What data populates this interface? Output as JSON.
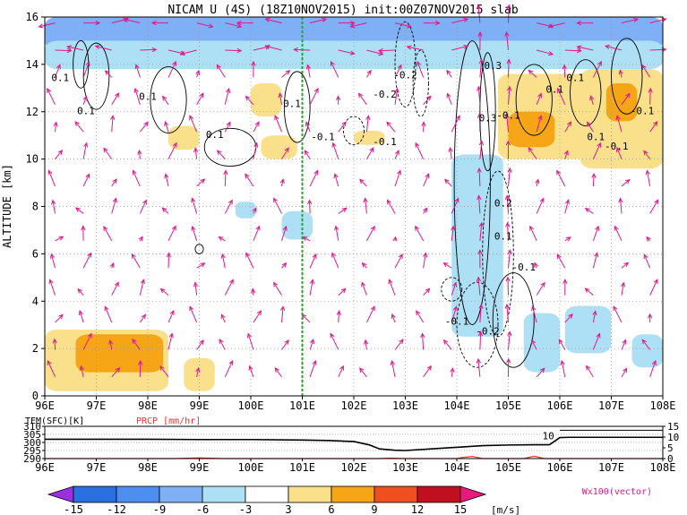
{
  "chart_data": [
    {
      "type": "heatmap",
      "title": "NICAM U (4S) (18Z10NOV2015) init:00Z07NOV2015 slab",
      "ylabel": "ALTITUDE [km]",
      "xlabel": "",
      "x_ticks": [
        "96E",
        "97E",
        "98E",
        "99E",
        "100E",
        "101E",
        "102E",
        "103E",
        "104E",
        "105E",
        "106E",
        "107E",
        "108E"
      ],
      "y_ticks": [
        "0",
        "2",
        "4",
        "6",
        "8",
        "10",
        "12",
        "14",
        "16"
      ],
      "xlim": [
        96,
        108
      ],
      "ylim": [
        0,
        16
      ],
      "grid": true,
      "vertical_line_lon": 101,
      "shading_regions": [
        {
          "level": "negative_mid",
          "lon": [
            96.0,
            108.0
          ],
          "alt": [
            14.6,
            16.0
          ]
        },
        {
          "level": "negative_weak",
          "lon": [
            96.0,
            108.0
          ],
          "alt": [
            13.8,
            15.0
          ]
        },
        {
          "level": "positive_weak",
          "lon": [
            96.0,
            98.4
          ],
          "alt": [
            0.2,
            2.8
          ]
        },
        {
          "level": "positive_mid",
          "lon": [
            96.6,
            98.3
          ],
          "alt": [
            1.0,
            2.6
          ]
        },
        {
          "level": "positive_weak",
          "lon": [
            98.7,
            99.3
          ],
          "alt": [
            0.2,
            1.6
          ]
        },
        {
          "level": "positive_weak",
          "lon": [
            98.4,
            99.0
          ],
          "alt": [
            10.4,
            11.4
          ]
        },
        {
          "level": "positive_weak",
          "lon": [
            100.0,
            100.6
          ],
          "alt": [
            11.8,
            13.2
          ]
        },
        {
          "level": "positive_weak",
          "lon": [
            100.2,
            100.9
          ],
          "alt": [
            10.0,
            11.0
          ]
        },
        {
          "level": "positive_weak",
          "lon": [
            102.0,
            102.6
          ],
          "alt": [
            10.6,
            11.2
          ]
        },
        {
          "level": "negative_weak",
          "lon": [
            100.6,
            101.2
          ],
          "alt": [
            6.6,
            7.8
          ]
        },
        {
          "level": "negative_weak",
          "lon": [
            99.7,
            100.1
          ],
          "alt": [
            7.5,
            8.2
          ]
        },
        {
          "level": "negative_weak",
          "lon": [
            103.9,
            104.9
          ],
          "alt": [
            2.5,
            10.2
          ]
        },
        {
          "level": "negative_weak",
          "lon": [
            105.3,
            106.0
          ],
          "alt": [
            1.0,
            3.5
          ]
        },
        {
          "level": "negative_weak",
          "lon": [
            106.1,
            107.0
          ],
          "alt": [
            1.8,
            3.8
          ]
        },
        {
          "level": "negative_weak",
          "lon": [
            107.4,
            108.0
          ],
          "alt": [
            1.2,
            2.6
          ]
        },
        {
          "level": "positive_weak",
          "lon": [
            104.8,
            106.6
          ],
          "alt": [
            10.0,
            13.6
          ]
        },
        {
          "level": "positive_mid",
          "lon": [
            105.0,
            105.9
          ],
          "alt": [
            10.5,
            12.0
          ]
        },
        {
          "level": "positive_weak",
          "lon": [
            106.4,
            108.0
          ],
          "alt": [
            9.6,
            13.8
          ]
        },
        {
          "level": "positive_mid",
          "lon": [
            106.9,
            107.5
          ],
          "alt": [
            11.6,
            13.2
          ]
        }
      ],
      "contour_labels": [
        {
          "text": "0.1",
          "lon": 96.3,
          "alt": 13.3
        },
        {
          "text": "0.1",
          "lon": 96.8,
          "alt": 11.9
        },
        {
          "text": "0.1",
          "lon": 98.0,
          "alt": 12.5
        },
        {
          "text": "0.1",
          "lon": 99.3,
          "alt": 10.9
        },
        {
          "text": "0.1",
          "lon": 100.8,
          "alt": 12.2
        },
        {
          "text": "-0.1",
          "lon": 101.4,
          "alt": 10.8
        },
        {
          "text": "-0.1",
          "lon": 102.6,
          "alt": 10.6
        },
        {
          "text": "-0.1",
          "lon": 104.0,
          "alt": 3.0
        },
        {
          "text": "-0.2",
          "lon": 103.0,
          "alt": 13.4
        },
        {
          "text": "-0.2",
          "lon": 102.6,
          "alt": 12.6
        },
        {
          "text": "-0.2",
          "lon": 104.6,
          "alt": 2.6
        },
        {
          "text": "0.3",
          "lon": 104.7,
          "alt": 13.8
        },
        {
          "text": "0.3",
          "lon": 104.6,
          "alt": 11.6
        },
        {
          "text": "-0.1",
          "lon": 105.0,
          "alt": 11.7
        },
        {
          "text": "0.1",
          "lon": 105.9,
          "alt": 12.8
        },
        {
          "text": "0.1",
          "lon": 106.7,
          "alt": 10.8
        },
        {
          "text": "-0.1",
          "lon": 107.1,
          "alt": 10.4
        },
        {
          "text": "-0.1",
          "lon": 107.6,
          "alt": 11.9
        },
        {
          "text": "0.1",
          "lon": 106.3,
          "alt": 13.3
        },
        {
          "text": "0.1",
          "lon": 104.9,
          "alt": 6.6
        },
        {
          "text": "-0.1",
          "lon": 105.3,
          "alt": 5.3
        },
        {
          "text": "0.2",
          "lon": 104.9,
          "alt": 8.0
        }
      ]
    },
    {
      "type": "line",
      "labels": [
        "TEM(SFC)[K]",
        "PRCP [mm/hr]"
      ],
      "y_ticks_left": [
        "290",
        "295",
        "300",
        "305",
        "310"
      ],
      "y_ticks_right": [
        "0",
        "5",
        "10",
        "15"
      ],
      "x_ticks": [
        "96E",
        "97E",
        "98E",
        "99E",
        "100E",
        "101E",
        "102E",
        "103E",
        "104E",
        "105E",
        "106E",
        "107E",
        "108E"
      ],
      "xlim": [
        96,
        108
      ],
      "ylim_left": [
        290,
        310
      ],
      "ylim_right": [
        0,
        15
      ],
      "series": [
        {
          "name": "TEM(SFC)[K]",
          "x": [
            96,
            97,
            98,
            99,
            100,
            101,
            101.5,
            102.0,
            102.3,
            102.5,
            102.8,
            103.0,
            103.5,
            104.0,
            104.5,
            105.0,
            105.5,
            105.8,
            106.0,
            106.2,
            107.0,
            108
          ],
          "values": [
            302.0,
            302.0,
            302.0,
            301.8,
            301.8,
            301.5,
            301.2,
            300.6,
            298.5,
            296.0,
            295.2,
            295.0,
            296.0,
            297.0,
            298.0,
            298.4,
            298.6,
            298.6,
            303.0,
            303.2,
            303.2,
            303.2
          ]
        },
        {
          "name": "PRCP [mm/hr]",
          "x": [
            96,
            98.5,
            99,
            99.5,
            100,
            102.5,
            102.7,
            103,
            104,
            104.1,
            104.3,
            104.5,
            105.3,
            105.5,
            105.7,
            108
          ],
          "values": [
            0,
            0,
            0.3,
            0,
            0,
            0,
            0.2,
            0,
            0,
            0.5,
            1.0,
            0,
            0,
            1.1,
            0,
            0
          ]
        }
      ],
      "annotation": "10",
      "annotation_lon": 105.8
    }
  ],
  "colorbar": {
    "ticks": [
      "-15",
      "-12",
      "-9",
      "-6",
      "-3",
      "3",
      "6",
      "9",
      "12",
      "15"
    ],
    "unit": "[m/s]",
    "colors": [
      "#9a30e0",
      "#2a6fe0",
      "#4d8ff0",
      "#7fb0f5",
      "#aee0f5",
      "#ffffff",
      "#fae08a",
      "#f5a515",
      "#f05020",
      "#c01020",
      "#e8187c"
    ]
  },
  "vector_note": "Wx100(vector)",
  "vector_color": "#e0188a",
  "line_colors": {
    "temperature": "#000000",
    "precip": "#ff2a2a",
    "vertical_line": "#22aa22"
  }
}
